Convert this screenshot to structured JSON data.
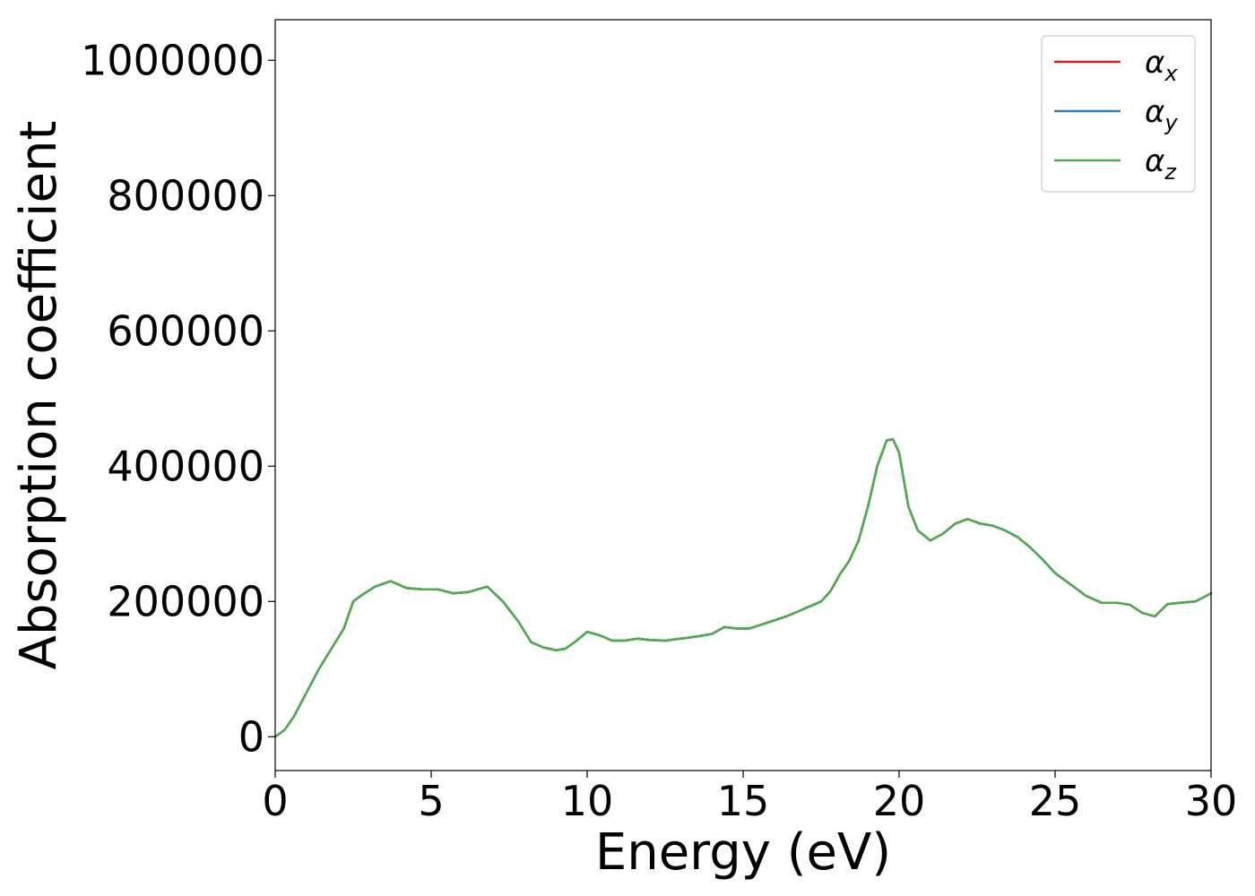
{
  "chart_data": {
    "type": "line",
    "xlabel": "Energy (eV)",
    "ylabel": "Absorption coefficient",
    "xlim": [
      0,
      30
    ],
    "ylim": [
      -50000,
      1060000
    ],
    "xticks": [
      0,
      5,
      10,
      15,
      20,
      25,
      30
    ],
    "yticks": [
      0,
      200000,
      400000,
      600000,
      800000,
      1000000
    ],
    "xtick_labels": [
      "0",
      "5",
      "10",
      "15",
      "20",
      "25",
      "30"
    ],
    "ytick_labels": [
      "0",
      "200000",
      "400000",
      "600000",
      "800000",
      "1000000"
    ],
    "grid": false,
    "legend_position": "top-right",
    "x": [
      0,
      0.3,
      0.6,
      1.0,
      1.4,
      1.8,
      2.2,
      2.5,
      2.8,
      3.2,
      3.7,
      4.2,
      4.7,
      5.2,
      5.7,
      6.2,
      6.8,
      7.3,
      7.8,
      8.2,
      8.6,
      9.0,
      9.3,
      9.6,
      10.0,
      10.4,
      10.8,
      11.2,
      11.6,
      12.0,
      12.5,
      13.0,
      13.5,
      14.0,
      14.4,
      14.8,
      15.2,
      15.6,
      16.0,
      16.5,
      17.0,
      17.5,
      17.8,
      18.1,
      18.4,
      18.7,
      19.0,
      19.3,
      19.6,
      19.8,
      20.0,
      20.3,
      20.6,
      21.0,
      21.4,
      21.8,
      22.2,
      22.6,
      23.0,
      23.4,
      23.8,
      24.2,
      24.6,
      25.0,
      25.5,
      26.0,
      26.5,
      27.0,
      27.4,
      27.8,
      28.2,
      28.6,
      29.0,
      29.5,
      30.0
    ],
    "series": [
      {
        "name": "α_x",
        "color": "#e41a1c",
        "values": [
          0,
          10000,
          30000,
          65000,
          100000,
          130000,
          160000,
          200000,
          210000,
          222000,
          230000,
          220000,
          218000,
          218000,
          212000,
          214000,
          222000,
          200000,
          170000,
          140000,
          132000,
          128000,
          130000,
          140000,
          155000,
          150000,
          142000,
          142000,
          145000,
          143000,
          142000,
          145000,
          148000,
          152000,
          162000,
          160000,
          160000,
          166000,
          172000,
          180000,
          190000,
          200000,
          215000,
          240000,
          260000,
          290000,
          340000,
          400000,
          438000,
          440000,
          420000,
          340000,
          305000,
          290000,
          300000,
          315000,
          322000,
          315000,
          312000,
          305000,
          295000,
          280000,
          262000,
          242000,
          225000,
          208000,
          198000,
          198000,
          195000,
          183000,
          178000,
          196000,
          198000,
          200000,
          212000
        ]
      },
      {
        "name": "α_y",
        "color": "#377eb8",
        "values": [
          0,
          10000,
          30000,
          65000,
          100000,
          130000,
          160000,
          200000,
          210000,
          222000,
          230000,
          220000,
          218000,
          218000,
          212000,
          214000,
          222000,
          200000,
          170000,
          140000,
          132000,
          128000,
          130000,
          140000,
          155000,
          150000,
          142000,
          142000,
          145000,
          143000,
          142000,
          145000,
          148000,
          152000,
          162000,
          160000,
          160000,
          166000,
          172000,
          180000,
          190000,
          200000,
          215000,
          240000,
          260000,
          290000,
          340000,
          400000,
          438000,
          440000,
          420000,
          340000,
          305000,
          290000,
          300000,
          315000,
          322000,
          315000,
          312000,
          305000,
          295000,
          280000,
          262000,
          242000,
          225000,
          208000,
          198000,
          198000,
          195000,
          183000,
          178000,
          196000,
          198000,
          200000,
          212000
        ]
      },
      {
        "name": "α_z",
        "color": "#4daf4a",
        "values": [
          0,
          10000,
          30000,
          65000,
          100000,
          130000,
          160000,
          200000,
          210000,
          222000,
          230000,
          220000,
          218000,
          218000,
          212000,
          214000,
          222000,
          200000,
          170000,
          140000,
          132000,
          128000,
          130000,
          140000,
          155000,
          150000,
          142000,
          142000,
          145000,
          143000,
          142000,
          145000,
          148000,
          152000,
          162000,
          160000,
          160000,
          166000,
          172000,
          180000,
          190000,
          200000,
          215000,
          240000,
          260000,
          290000,
          340000,
          400000,
          438000,
          440000,
          420000,
          340000,
          305000,
          290000,
          300000,
          315000,
          322000,
          315000,
          312000,
          305000,
          295000,
          280000,
          262000,
          242000,
          225000,
          208000,
          198000,
          198000,
          195000,
          183000,
          178000,
          196000,
          198000,
          200000,
          212000
        ]
      }
    ],
    "legend_labels": [
      {
        "base": "α",
        "sub": "x"
      },
      {
        "base": "α",
        "sub": "y"
      },
      {
        "base": "α",
        "sub": "z"
      }
    ]
  }
}
